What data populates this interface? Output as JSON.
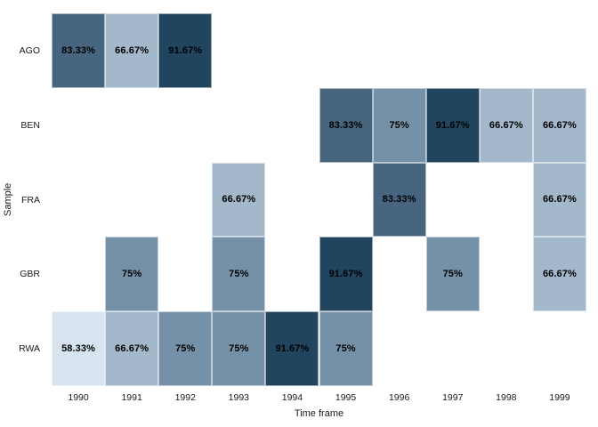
{
  "chart_data": {
    "type": "heatmap",
    "title": "",
    "xlabel": "Time frame",
    "ylabel": "Sample",
    "x_categories": [
      "1990",
      "1991",
      "1992",
      "1993",
      "1994",
      "1995",
      "1996",
      "1997",
      "1998",
      "1999"
    ],
    "y_categories": [
      "AGO",
      "BEN",
      "FRA",
      "GBR",
      "RWA"
    ],
    "legend": "none",
    "grid": false,
    "background_color": "#ffffff",
    "text_color": "#1a1a1a",
    "value_colors": {
      "58.33%": "#d7e3ee",
      "66.67%": "#a3b8ca",
      "75%": "#7591a8",
      "83.33%": "#48657f",
      "91.67%": "#22455f"
    },
    "cells": [
      {
        "row": "AGO",
        "col": "1990",
        "value": 83.33,
        "label": "83.33%"
      },
      {
        "row": "AGO",
        "col": "1991",
        "value": 66.67,
        "label": "66.67%"
      },
      {
        "row": "AGO",
        "col": "1992",
        "value": 91.67,
        "label": "91.67%"
      },
      {
        "row": "BEN",
        "col": "1995",
        "value": 83.33,
        "label": "83.33%"
      },
      {
        "row": "BEN",
        "col": "1996",
        "value": 75,
        "label": "75%"
      },
      {
        "row": "BEN",
        "col": "1997",
        "value": 91.67,
        "label": "91.67%"
      },
      {
        "row": "BEN",
        "col": "1998",
        "value": 66.67,
        "label": "66.67%"
      },
      {
        "row": "BEN",
        "col": "1999",
        "value": 66.67,
        "label": "66.67%"
      },
      {
        "row": "FRA",
        "col": "1993",
        "value": 66.67,
        "label": "66.67%"
      },
      {
        "row": "FRA",
        "col": "1996",
        "value": 83.33,
        "label": "83.33%"
      },
      {
        "row": "FRA",
        "col": "1999",
        "value": 66.67,
        "label": "66.67%"
      },
      {
        "row": "GBR",
        "col": "1991",
        "value": 75,
        "label": "75%"
      },
      {
        "row": "GBR",
        "col": "1993",
        "value": 75,
        "label": "75%"
      },
      {
        "row": "GBR",
        "col": "1995",
        "value": 91.67,
        "label": "91.67%"
      },
      {
        "row": "GBR",
        "col": "1997",
        "value": 75,
        "label": "75%"
      },
      {
        "row": "GBR",
        "col": "1999",
        "value": 66.67,
        "label": "66.67%"
      },
      {
        "row": "RWA",
        "col": "1990",
        "value": 58.33,
        "label": "58.33%"
      },
      {
        "row": "RWA",
        "col": "1991",
        "value": 66.67,
        "label": "66.67%"
      },
      {
        "row": "RWA",
        "col": "1992",
        "value": 75,
        "label": "75%"
      },
      {
        "row": "RWA",
        "col": "1993",
        "value": 75,
        "label": "75%"
      },
      {
        "row": "RWA",
        "col": "1994",
        "value": 91.67,
        "label": "91.67%"
      },
      {
        "row": "RWA",
        "col": "1995",
        "value": 75,
        "label": "75%"
      }
    ]
  }
}
